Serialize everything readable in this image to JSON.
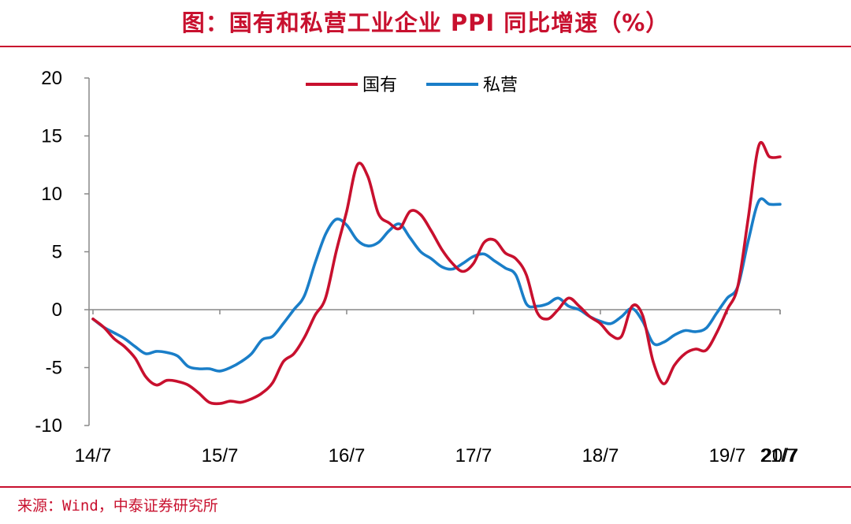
{
  "title": "图：国有和私营工业企业 PPI 同比增速（%）",
  "source": "来源：Wind，中泰证券研究所",
  "colors": {
    "accent": "#c8102e",
    "state": "#c8102e",
    "private": "#1a7ec8"
  },
  "chart_data": {
    "type": "line",
    "title": "国有和私营工业企业 PPI 同比增速（%）",
    "xlabel": "",
    "ylabel": "",
    "ylim": [
      -10,
      20
    ],
    "yticks": [
      20,
      15,
      10,
      5,
      0,
      -5,
      -10
    ],
    "xtick_labels": [
      "14/7",
      "15/7",
      "16/7",
      "17/7",
      "18/7",
      "19/7",
      "20/7",
      "21/7"
    ],
    "legend": "top-center",
    "x_start": "2014-07",
    "x_end": "2021-08",
    "series": [
      {
        "name": "国有",
        "color": "#c8102e",
        "values": [
          -0.8,
          -1.5,
          -2.5,
          -3.2,
          -4.2,
          -5.8,
          -6.5,
          -6.1,
          -6.2,
          -6.5,
          -7.2,
          -8.0,
          -8.1,
          -7.9,
          -8.0,
          -7.7,
          -7.2,
          -6.3,
          -4.5,
          -3.8,
          -2.4,
          -0.5,
          1.0,
          5.0,
          8.5,
          12.5,
          11.5,
          8.3,
          7.5,
          7.0,
          8.5,
          8.2,
          6.8,
          5.2,
          4.0,
          3.3,
          4.0,
          5.8,
          6.0,
          4.9,
          4.4,
          3.0,
          -0.2,
          -0.8,
          0.0,
          1.0,
          0.3,
          -0.6,
          -1.2,
          -2.2,
          -2.3,
          0.3,
          -0.5,
          -4.5,
          -6.4,
          -4.8,
          -3.8,
          -3.4,
          -3.5,
          -2.0,
          0.0,
          2.0,
          8.0,
          14.2,
          13.2,
          13.2
        ]
      },
      {
        "name": "私营",
        "color": "#1a7ec8",
        "values": [
          -0.8,
          -1.5,
          -2.0,
          -2.5,
          -3.2,
          -3.8,
          -3.6,
          -3.7,
          -4.0,
          -4.9,
          -5.1,
          -5.1,
          -5.3,
          -5.0,
          -4.5,
          -3.8,
          -2.6,
          -2.3,
          -1.2,
          0.0,
          1.2,
          4.0,
          6.5,
          7.8,
          7.3,
          6.0,
          5.5,
          5.8,
          6.8,
          7.4,
          6.2,
          5.0,
          4.4,
          3.7,
          3.5,
          4.0,
          4.6,
          4.8,
          4.2,
          3.6,
          3.0,
          0.5,
          0.3,
          0.5,
          1.0,
          0.3,
          0.0,
          -0.6,
          -1.0,
          -1.2,
          -0.6,
          0.1,
          -1.0,
          -2.9,
          -2.8,
          -2.2,
          -1.8,
          -1.9,
          -1.6,
          -0.3,
          1.0,
          2.0,
          6.0,
          9.4,
          9.1,
          9.1
        ]
      }
    ]
  }
}
